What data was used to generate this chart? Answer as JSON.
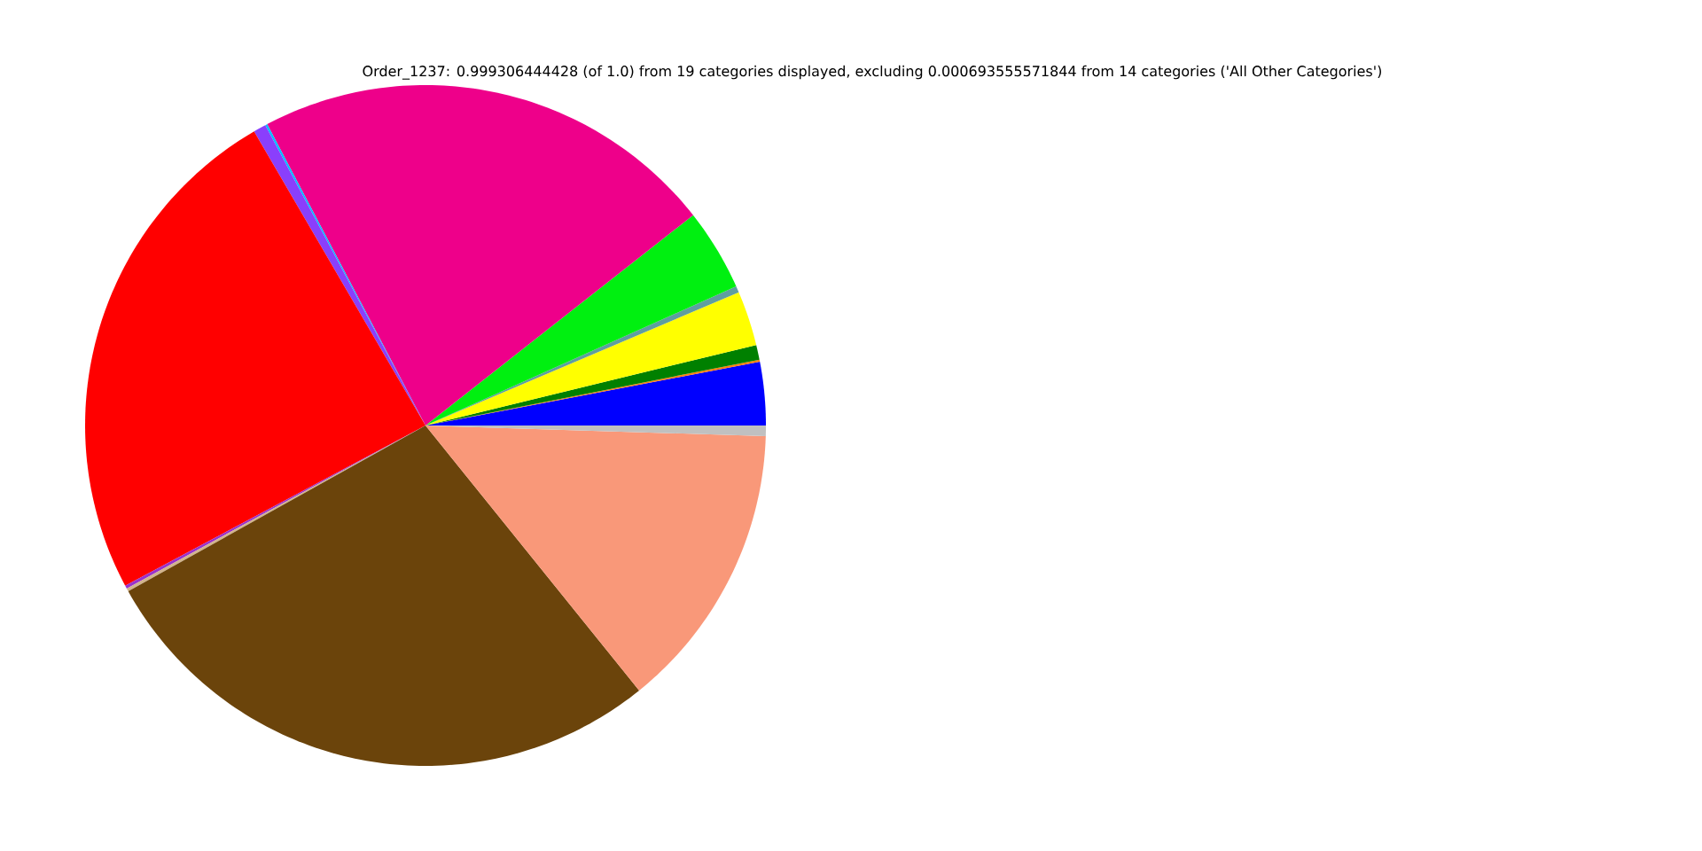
{
  "chart_data": {
    "type": "pie",
    "title": "Order_1237: 0.999306444428 (of 1.0) from 19 categories displayed, excluding 0.000693555571844 from 14 categories ('All Other Categories')",
    "categories": [
      null,
      null,
      null,
      null,
      null,
      null,
      null,
      null,
      null,
      null,
      null,
      null,
      null,
      null,
      null
    ],
    "values": [
      3.0,
      0.1,
      0.7,
      2.6,
      0.3,
      3.9,
      22.1,
      0.1,
      0.6,
      24.4,
      0.15,
      0.15,
      27.7,
      13.7,
      0.5
    ],
    "colors": [
      "#0000ff",
      "#ff7f0e",
      "#008000",
      "#ffff00",
      "#5f9ea0",
      "#00f010",
      "#ee008a",
      "#00bfff",
      "#8a3ffc",
      "#ff0000",
      "#9932cc",
      "#d2b48c",
      "#6b440b",
      "#f99879",
      "#c0c0c0"
    ]
  }
}
